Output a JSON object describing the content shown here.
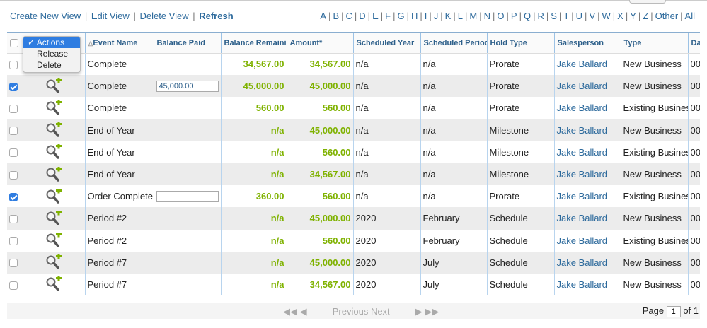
{
  "toolbar": {
    "create_view": "Create New View",
    "edit_view": "Edit View",
    "delete_view": "Delete View",
    "refresh": "Refresh",
    "separator": "|"
  },
  "alpha_filter": [
    "A",
    "B",
    "C",
    "D",
    "E",
    "F",
    "G",
    "H",
    "I",
    "J",
    "K",
    "L",
    "M",
    "N",
    "O",
    "P",
    "Q",
    "R",
    "S",
    "T",
    "U",
    "V",
    "W",
    "X",
    "Y",
    "Z",
    "Other",
    "All"
  ],
  "actions_menu": {
    "selected": "Actions",
    "options": [
      "Actions",
      "Release",
      "Delete"
    ]
  },
  "columns": {
    "event_name": "Event Name",
    "balance_paid": "Balance Paid",
    "balance_remaining": "Balance Remaining",
    "amount": "Amount*",
    "scheduled_year": "Scheduled Year",
    "scheduled_period": "Scheduled Period",
    "hold_type": "Hold Type",
    "salesperson": "Salesperson",
    "type": "Type",
    "date": "Date"
  },
  "rows": [
    {
      "checked": false,
      "event": "Complete",
      "paid": "",
      "input": false,
      "remaining": "34,567.00",
      "amount": "34,567.00",
      "year": "n/a",
      "period": "n/a",
      "hold": "Prorate",
      "sales": "Jake Ballard",
      "type": "New Business",
      "date": "00"
    },
    {
      "checked": true,
      "event": "Complete",
      "paid": "45,000.00",
      "input": true,
      "remaining": "45,000.00",
      "amount": "45,000.00",
      "year": "n/a",
      "period": "n/a",
      "hold": "Prorate",
      "sales": "Jake Ballard",
      "type": "New Business",
      "date": "00"
    },
    {
      "checked": false,
      "event": "Complete",
      "paid": "",
      "input": false,
      "remaining": "560.00",
      "amount": "560.00",
      "year": "n/a",
      "period": "n/a",
      "hold": "Prorate",
      "sales": "Jake Ballard",
      "type": "Existing Business",
      "date": "00"
    },
    {
      "checked": false,
      "event": "End of Year",
      "paid": "",
      "input": false,
      "remaining": "n/a",
      "amount": "45,000.00",
      "year": "n/a",
      "period": "n/a",
      "hold": "Milestone",
      "sales": "Jake Ballard",
      "type": "New Business",
      "date": "00"
    },
    {
      "checked": false,
      "event": "End of Year",
      "paid": "",
      "input": false,
      "remaining": "n/a",
      "amount": "560.00",
      "year": "n/a",
      "period": "n/a",
      "hold": "Milestone",
      "sales": "Jake Ballard",
      "type": "Existing Business",
      "date": "00"
    },
    {
      "checked": false,
      "event": "End of Year",
      "paid": "",
      "input": false,
      "remaining": "n/a",
      "amount": "34,567.00",
      "year": "n/a",
      "period": "n/a",
      "hold": "Milestone",
      "sales": "Jake Ballard",
      "type": "New Business",
      "date": "00"
    },
    {
      "checked": true,
      "event": "Order Complete",
      "paid": "",
      "input": true,
      "remaining": "360.00",
      "amount": "560.00",
      "year": "n/a",
      "period": "n/a",
      "hold": "Prorate",
      "sales": "Jake Ballard",
      "type": "Existing Business",
      "date": "00"
    },
    {
      "checked": false,
      "event": "Period #2",
      "paid": "",
      "input": false,
      "remaining": "n/a",
      "amount": "45,000.00",
      "year": "2020",
      "period": "February",
      "hold": "Schedule",
      "sales": "Jake Ballard",
      "type": "New Business",
      "date": "00"
    },
    {
      "checked": false,
      "event": "Period #2",
      "paid": "",
      "input": false,
      "remaining": "n/a",
      "amount": "560.00",
      "year": "2020",
      "period": "February",
      "hold": "Schedule",
      "sales": "Jake Ballard",
      "type": "Existing Business",
      "date": "00"
    },
    {
      "checked": false,
      "event": "Period #7",
      "paid": "",
      "input": false,
      "remaining": "n/a",
      "amount": "45,000.00",
      "year": "2020",
      "period": "July",
      "hold": "Schedule",
      "sales": "Jake Ballard",
      "type": "New Business",
      "date": "00"
    },
    {
      "checked": false,
      "event": "Period #7",
      "paid": "",
      "input": false,
      "remaining": "n/a",
      "amount": "34,567.00",
      "year": "2020",
      "period": "July",
      "hold": "Schedule",
      "sales": "Jake Ballard",
      "type": "New Business",
      "date": "00"
    }
  ],
  "pager": {
    "first_prev_icon": "◀◀ ◀",
    "previous": "Previous",
    "next": "Next",
    "next_last_icon": "▶ ▶▶",
    "page_label": "Page",
    "page_value": "1",
    "of_label": "of 1"
  },
  "colors": {
    "link": "#2d6a9c",
    "amount_green": "#7fb200",
    "header_border": "#8aaed0",
    "checkbox_checked": "#2f7de1"
  }
}
